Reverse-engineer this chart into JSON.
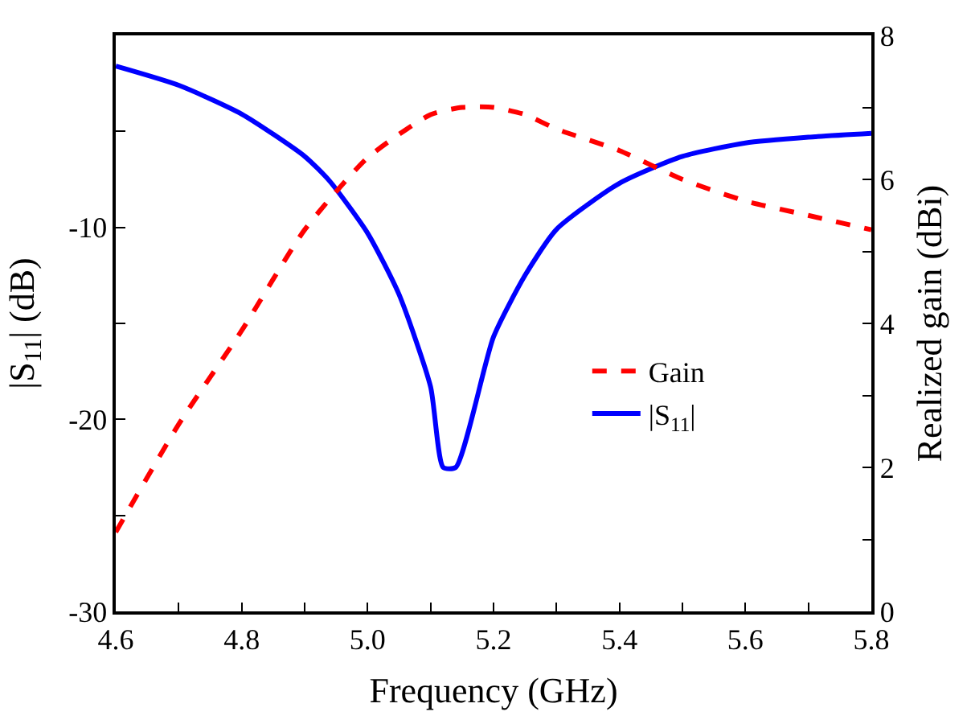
{
  "chart_data": {
    "type": "line",
    "xlabel": "Frequency (GHz)",
    "ylabel": "|S$_{11}$| (dB)",
    "y2label": "Realized gain (dBi)",
    "series": [
      {
        "name": "Gain",
        "color": "#ff0000",
        "axis": "y2",
        "line_style": "dashed",
        "x": [
          4.6,
          4.7,
          4.8,
          4.9,
          5.0,
          5.1,
          5.15,
          5.2,
          5.25,
          5.3,
          5.4,
          5.5,
          5.6,
          5.7,
          5.8
        ],
        "values": [
          1.1,
          2.6,
          3.9,
          5.3,
          6.3,
          6.9,
          7.0,
          7.0,
          6.9,
          6.7,
          6.4,
          6.0,
          5.7,
          5.5,
          5.3
        ]
      },
      {
        "name": "|S$_{11}$|",
        "color": "#0000ff",
        "axis": "y",
        "line_style": "solid",
        "x": [
          4.6,
          4.7,
          4.8,
          4.9,
          4.94,
          5.0,
          5.05,
          5.1,
          5.12,
          5.14,
          5.2,
          5.25,
          5.3,
          5.4,
          5.5,
          5.6,
          5.7,
          5.8
        ],
        "values": [
          -1.6,
          -2.6,
          -4.1,
          -6.3,
          -7.6,
          -10.3,
          -13.5,
          -18.3,
          -22.5,
          -22.5,
          -15.7,
          -12.5,
          -10.1,
          -7.7,
          -6.3,
          -5.6,
          -5.3,
          -5.1
        ]
      }
    ],
    "xlim": [
      4.6,
      5.8
    ],
    "xticks": [
      4.6,
      {
        "value": 4.7,
        "label": null
      },
      4.8,
      {
        "value": 4.9,
        "label": null
      },
      {
        "value": 5.0,
        "label": "5.0"
      },
      {
        "value": 5.1,
        "label": null
      },
      5.2,
      {
        "value": 5.3,
        "label": null
      },
      5.4,
      {
        "value": 5.5,
        "label": null
      },
      5.6,
      {
        "value": 5.7,
        "label": null
      },
      5.8
    ],
    "ylim": [
      -30,
      0
    ],
    "yticks": [
      -30,
      {
        "value": -25,
        "label": null
      },
      -20,
      {
        "value": -15,
        "label": null
      },
      -10,
      {
        "value": -5,
        "label": null
      },
      {
        "value": 0,
        "label": null
      }
    ],
    "y2lim": [
      0,
      8
    ],
    "y2ticks": [
      0,
      {
        "value": 1,
        "label": null
      },
      2,
      {
        "value": 3,
        "label": null
      },
      4,
      {
        "value": 5,
        "label": null
      },
      6,
      {
        "value": 7,
        "label": null
      },
      8
    ],
    "legend": "right"
  }
}
